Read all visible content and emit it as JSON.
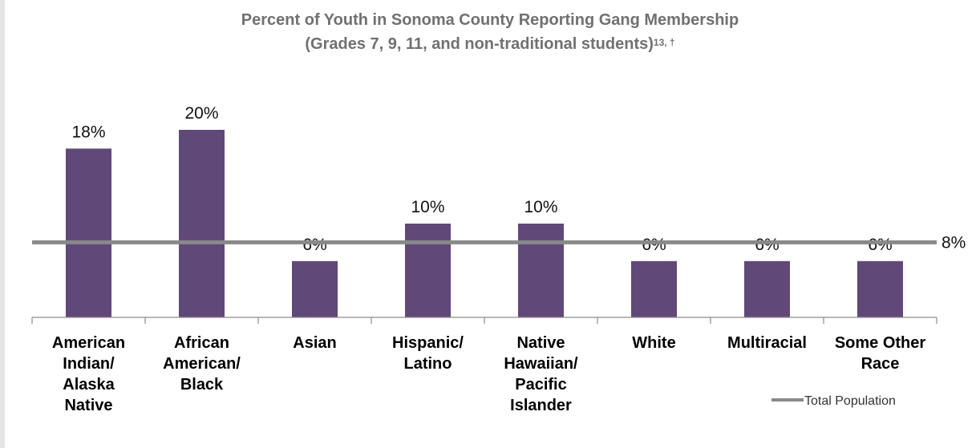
{
  "chart_data": {
    "type": "bar",
    "title_line1": "Percent of Youth in Sonoma County Reporting Gang Membership",
    "title_line2": "(Grades 7, 9, 11, and non-traditional students)",
    "title_superscript": "13, †",
    "categories": [
      [
        "American",
        "Indian/",
        "Alaska",
        "Native"
      ],
      [
        "African",
        "American/",
        "Black"
      ],
      [
        "Asian"
      ],
      [
        "Hispanic/",
        "Latino"
      ],
      [
        "Native",
        "Hawaiian/",
        "Pacific",
        "Islander"
      ],
      [
        "White"
      ],
      [
        "Multiracial"
      ],
      [
        "Some Other",
        "Race"
      ]
    ],
    "values": [
      18,
      20,
      6,
      10,
      10,
      6,
      6,
      6
    ],
    "value_labels": [
      "18%",
      "20%",
      "6%",
      "10%",
      "10%",
      "6%",
      "6%",
      "6%"
    ],
    "reference_line": {
      "name": "Total Population",
      "value": 8,
      "label": "8%"
    },
    "legend": {
      "entries": [
        "Total Population"
      ],
      "position": "bottom-right"
    },
    "ylim": [
      0,
      25
    ],
    "grid": false,
    "colors": {
      "bar": "#604878",
      "reference": "#898989",
      "axis": "#8c8c8c"
    }
  }
}
